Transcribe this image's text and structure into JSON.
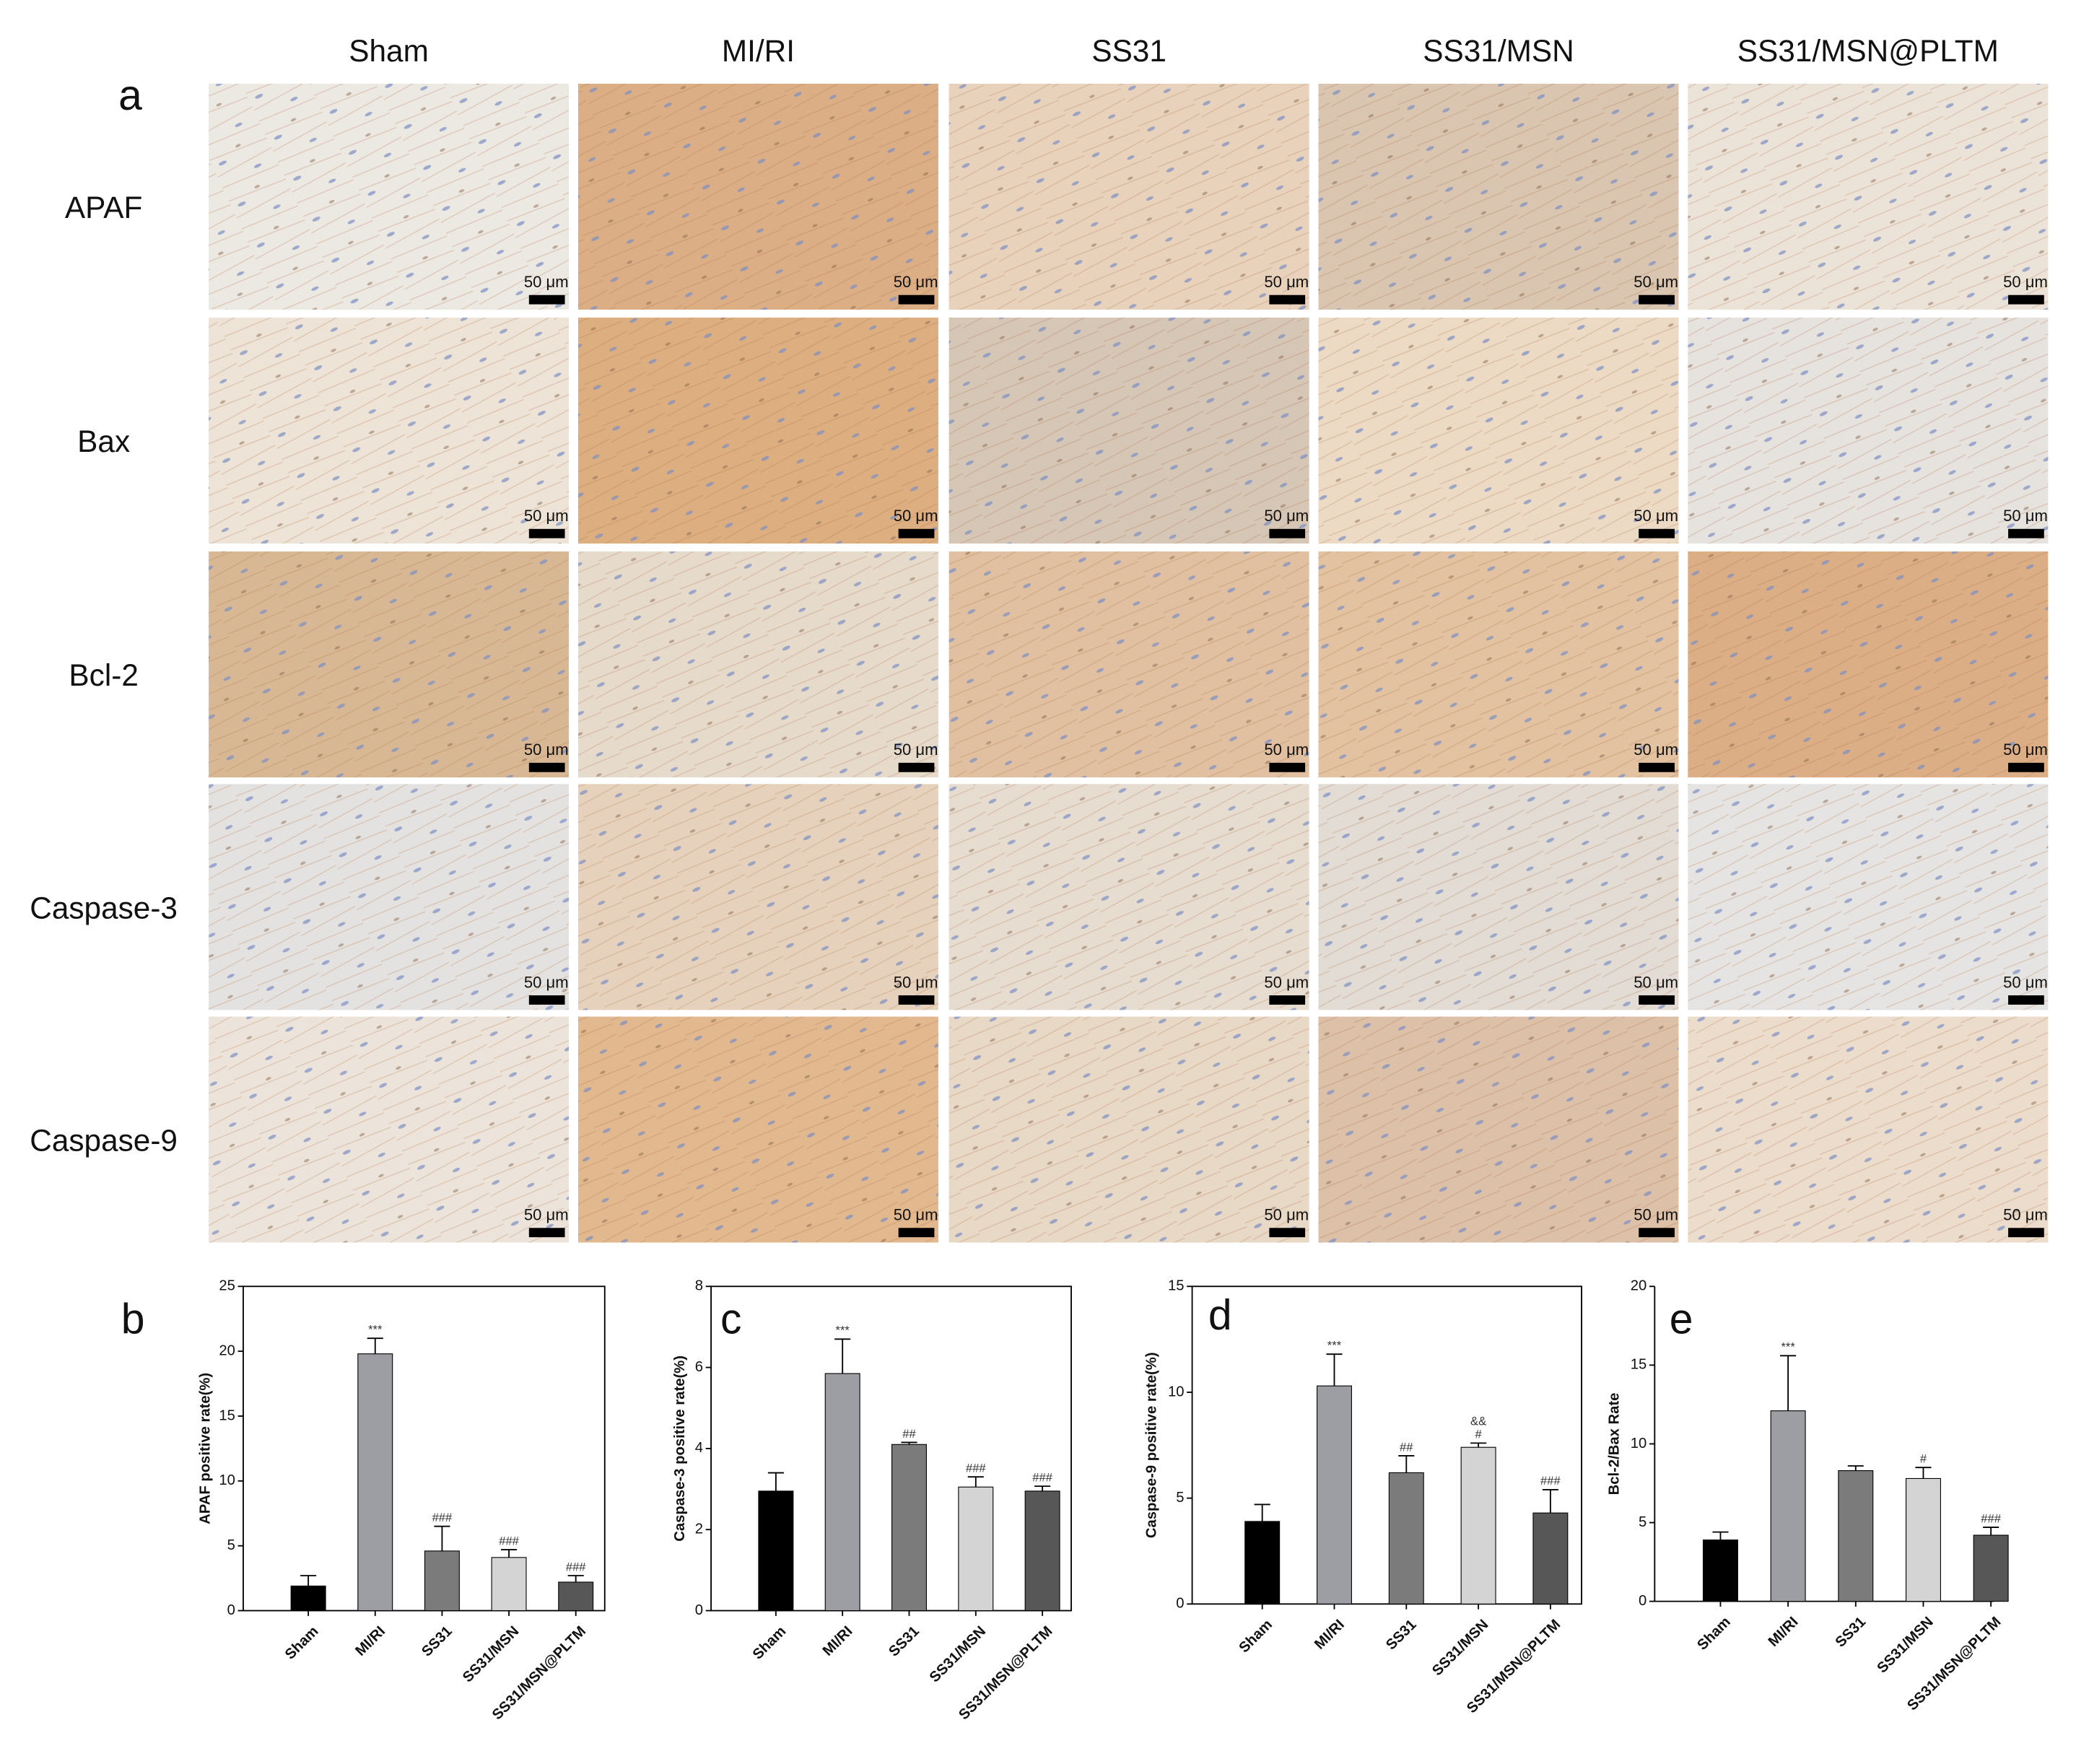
{
  "panel_a": {
    "label": "a",
    "columns": [
      "Sham",
      "MI/RI",
      "SS31",
      "SS31/MSN",
      "SS31/MSN@PLTM"
    ],
    "rows": [
      "APAF",
      "Bax",
      "Bcl-2",
      "Caspase-3",
      "Caspase-9"
    ],
    "scale_bar": "50 μm"
  },
  "chart_data": [
    {
      "type": "bar",
      "panel_label": "b",
      "y_label": "APAF positive rate(%)",
      "categories": [
        "Sham",
        "MI/RI",
        "SS31",
        "SS31/MSN",
        "SS31/MSN@PLTM"
      ],
      "values": [
        1.9,
        19.8,
        4.6,
        4.1,
        2.2
      ],
      "errors": [
        0.8,
        1.2,
        1.9,
        0.6,
        0.5
      ],
      "colors": [
        "#000000",
        "#9d9da4",
        "#7b7b7b",
        "#d4d4d4",
        "#575757"
      ],
      "annotations": [
        null,
        [
          "***"
        ],
        [
          "###"
        ],
        [
          "###"
        ],
        [
          "###"
        ]
      ],
      "ylim": [
        0,
        25
      ],
      "yticks": [
        0,
        5,
        10,
        15,
        20,
        25
      ],
      "frame": true
    },
    {
      "type": "bar",
      "panel_label": "c",
      "y_label": "Caspase-3 positive rate(%)",
      "categories": [
        "Sham",
        "MI/RI",
        "SS31",
        "SS31/MSN",
        "SS31/MSN@PLTM"
      ],
      "values": [
        2.95,
        5.85,
        4.1,
        3.05,
        2.95
      ],
      "errors": [
        0.45,
        0.85,
        0.05,
        0.25,
        0.12
      ],
      "colors": [
        "#000000",
        "#9d9da4",
        "#7b7b7b",
        "#d4d4d4",
        "#575757"
      ],
      "annotations": [
        null,
        [
          "***"
        ],
        [
          "##"
        ],
        [
          "###"
        ],
        [
          "###"
        ]
      ],
      "ylim": [
        0,
        8
      ],
      "yticks": [
        0,
        2,
        4,
        6,
        8
      ],
      "frame": true
    },
    {
      "type": "bar",
      "panel_label": "d",
      "y_label": "Caspase-9 positive rate(%)",
      "categories": [
        "Sham",
        "MI/RI",
        "SS31",
        "SS31/MSN",
        "SS31/MSN@PLTM"
      ],
      "values": [
        3.9,
        10.3,
        6.2,
        7.4,
        4.3
      ],
      "errors": [
        0.8,
        1.5,
        0.8,
        0.2,
        1.1
      ],
      "colors": [
        "#000000",
        "#9d9da4",
        "#7b7b7b",
        "#d4d4d4",
        "#575757"
      ],
      "annotations": [
        null,
        [
          "***"
        ],
        [
          "##"
        ],
        [
          "&&",
          "#"
        ],
        [
          "###"
        ]
      ],
      "ylim": [
        0,
        15
      ],
      "yticks": [
        0,
        5,
        10,
        15
      ],
      "frame": true
    },
    {
      "type": "bar",
      "panel_label": "e",
      "y_label": "Bcl-2/Bax Rate",
      "categories": [
        "Sham",
        "MI/RI",
        "SS31",
        "SS31/MSN",
        "SS31/MSN@PLTM"
      ],
      "values": [
        3.9,
        12.1,
        8.3,
        7.8,
        4.2
      ],
      "errors": [
        0.5,
        3.5,
        0.3,
        0.7,
        0.5
      ],
      "colors": [
        "#000000",
        "#9d9da4",
        "#7b7b7b",
        "#d4d4d4",
        "#575757"
      ],
      "annotations": [
        null,
        [
          "***"
        ],
        null,
        [
          "#"
        ],
        [
          "###"
        ]
      ],
      "ylim": [
        0,
        20
      ],
      "yticks": [
        0,
        5,
        10,
        15,
        20
      ],
      "frame": false
    }
  ]
}
